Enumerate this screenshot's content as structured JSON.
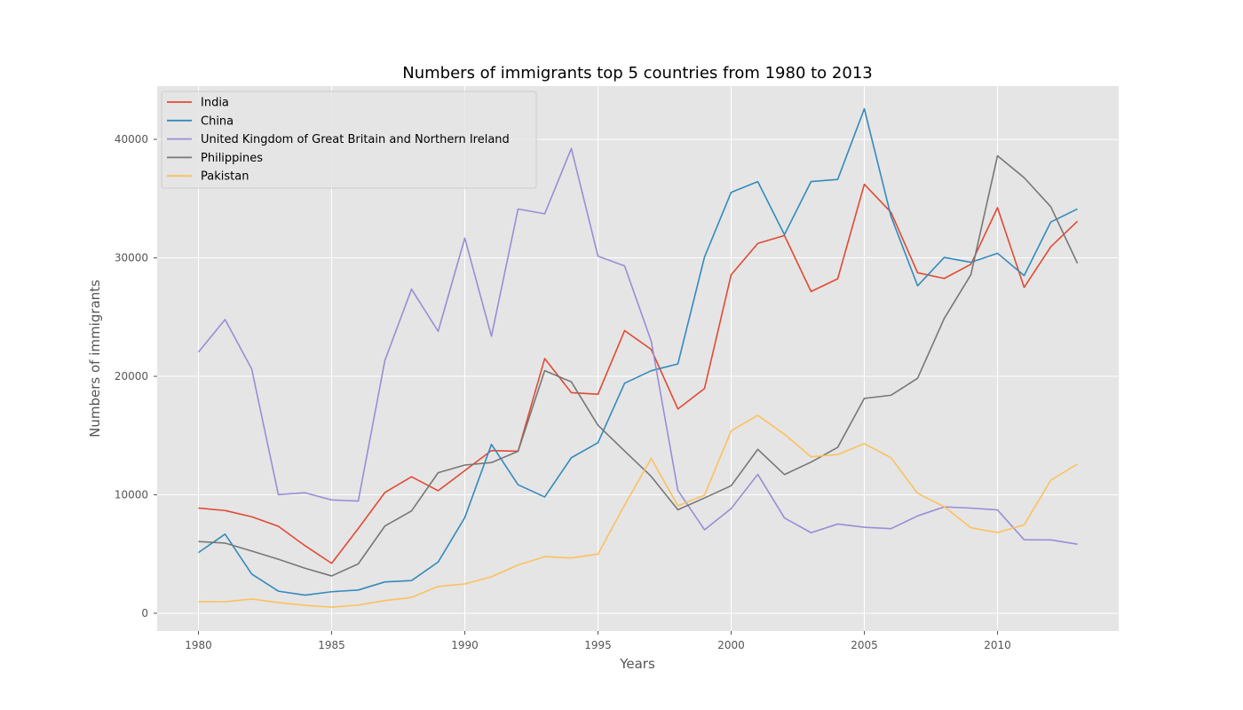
{
  "chart_data": {
    "type": "line",
    "title": "Numbers of immigrants top 5 countries from 1980 to 2013",
    "xlabel": "Years",
    "ylabel": "Numbers of immigrants",
    "xlim": [
      1978.45,
      2014.55
    ],
    "ylim": [
      -1500,
      44500
    ],
    "xticks": [
      1980,
      1985,
      1990,
      1995,
      2000,
      2005,
      2010
    ],
    "yticks": [
      0,
      10000,
      20000,
      30000,
      40000
    ],
    "grid": true,
    "legend_position": "upper-left",
    "colors": {
      "plot_background": "#e5e5e5",
      "grid": "#ffffff",
      "legend_background": "#e5e5e5",
      "legend_border": "#cccccc",
      "tick_mark": "#555555"
    },
    "x": [
      1980,
      1981,
      1982,
      1983,
      1984,
      1985,
      1986,
      1987,
      1988,
      1989,
      1990,
      1991,
      1992,
      1993,
      1994,
      1995,
      1996,
      1997,
      1998,
      1999,
      2000,
      2001,
      2002,
      2003,
      2004,
      2005,
      2006,
      2007,
      2008,
      2009,
      2010,
      2011,
      2012,
      2013
    ],
    "series": [
      {
        "name": "India",
        "color": "#e24a33",
        "values": [
          8880,
          8670,
          8147,
          7338,
          5704,
          4211,
          7150,
          10189,
          11522,
          10343,
          12041,
          13734,
          13673,
          21496,
          18620,
          18489,
          23859,
          22268,
          17241,
          18974,
          28572,
          31223,
          31889,
          27155,
          28235,
          36210,
          33848,
          28742,
          28261,
          29456,
          34235,
          27509,
          30933,
          33087
        ]
      },
      {
        "name": "China",
        "color": "#348abd",
        "values": [
          5123,
          6682,
          3308,
          1863,
          1527,
          1816,
          1960,
          2643,
          2758,
          4323,
          8076,
          14255,
          10846,
          9817,
          13128,
          14398,
          19415,
          20475,
          21049,
          30069,
          35529,
          36434,
          31961,
          36439,
          36619,
          42584,
          33518,
          27642,
          30037,
          29622,
          30391,
          28502,
          33024,
          34129
        ]
      },
      {
        "name": "United Kingdom of Great Britain and Northern Ireland",
        "color": "#988ed5",
        "values": [
          22045,
          24796,
          20620,
          10015,
          10170,
          9564,
          9470,
          21337,
          27359,
          23795,
          31668,
          23380,
          34123,
          33720,
          39231,
          30145,
          29322,
          22965,
          10367,
          7045,
          8840,
          11728,
          8046,
          6797,
          7533,
          7258,
          7140,
          8216,
          8979,
          8876,
          8724,
          6204,
          6195,
          5827
        ]
      },
      {
        "name": "Philippines",
        "color": "#777777",
        "values": [
          6051,
          5921,
          5249,
          4562,
          3801,
          3150,
          4166,
          7360,
          8639,
          11865,
          12509,
          12718,
          13670,
          20479,
          19532,
          15864,
          13692,
          11549,
          8735,
          9734,
          10763,
          13836,
          11707,
          12758,
          14004,
          18139,
          18400,
          19837,
          24887,
          28573,
          38617,
          36765,
          34315,
          29544
        ]
      },
      {
        "name": "Pakistan",
        "color": "#fbc15e",
        "values": [
          978,
          972,
          1201,
          900,
          668,
          514,
          691,
          1072,
          1334,
          2261,
          2470,
          3079,
          4071,
          4777,
          4666,
          4994,
          9125,
          13073,
          9068,
          9979,
          15400,
          16708,
          15110,
          13205,
          13399,
          14314,
          13127,
          10124,
          8994,
          7217,
          6811,
          7468,
          11227,
          12603
        ]
      }
    ]
  }
}
